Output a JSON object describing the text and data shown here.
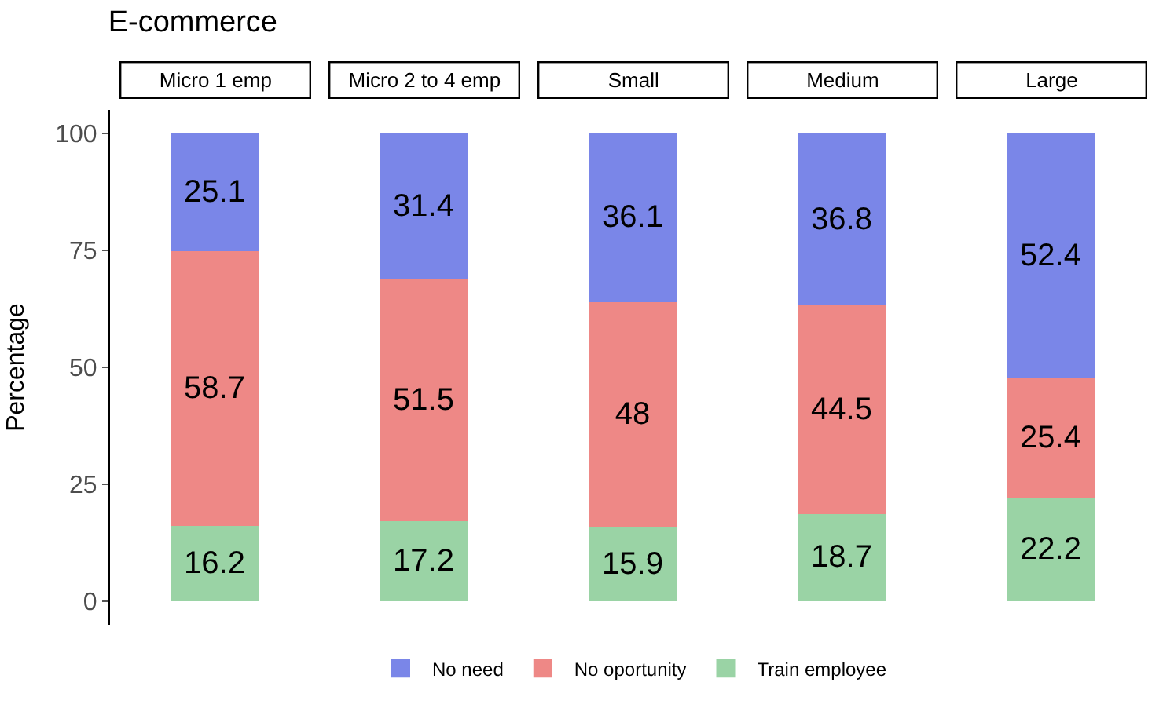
{
  "chart_data": {
    "type": "bar",
    "title": "E-commerce",
    "ylabel": "Percentage",
    "categories": [
      "Micro 1 emp",
      "Micro 2 to 4 emp",
      "Small",
      "Medium",
      "Large"
    ],
    "series": [
      {
        "name": "Train employee",
        "color": "#9ad3a5",
        "values": [
          16.2,
          17.2,
          15.9,
          18.7,
          22.2
        ]
      },
      {
        "name": "No oportunity",
        "color": "#ee8886",
        "values": [
          58.7,
          51.5,
          48,
          44.5,
          25.4
        ]
      },
      {
        "name": "No need",
        "color": "#7a86e8",
        "values": [
          25.1,
          31.4,
          36.1,
          36.8,
          52.4
        ]
      }
    ],
    "stacked": true,
    "data_labels": true,
    "ylim": [
      -5,
      105
    ],
    "yticks": [
      0,
      25,
      50,
      75,
      100
    ],
    "legend": "bottom",
    "tick_labels": "y"
  }
}
